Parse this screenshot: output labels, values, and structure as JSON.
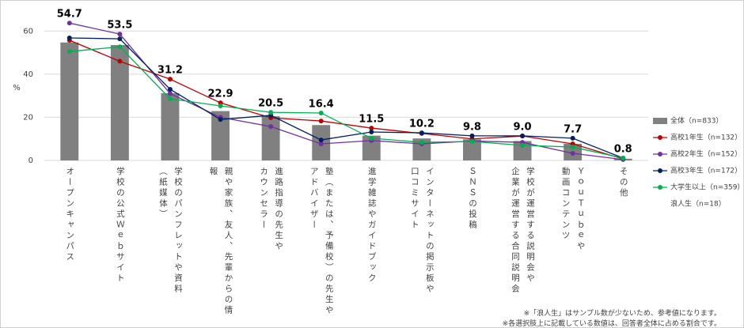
{
  "chart_data": {
    "type": "bar-line",
    "y_label": "%",
    "categories": [
      "オープンキャンパス",
      "学校の公式Ｗｅｂサイト",
      "学校のパンフレットや資料\n（紙媒体）",
      "親や家族、友人、先輩からの情\n報",
      "進路指導の先生や\nカウンセラー",
      "塾（または、予備校）の先生や\nアドバイザー",
      "進学雑誌やガイドブック",
      "インターネットの掲示板や\n口コミサイト",
      "ＳＮＳの投稿",
      "学校が運営する説明会や\n企業が運営する合同説明会",
      "ＹｏｕＴｕｂｅや\n動画コンテンツ",
      "その他"
    ],
    "ylim": [
      0,
      70
    ],
    "yticks": [
      0,
      20,
      40,
      60
    ],
    "grid": true,
    "series": [
      {
        "name": "全体（n=833）",
        "kind": "bar",
        "color": "#808080",
        "values": [
          54.7,
          53.5,
          31.2,
          22.9,
          20.5,
          16.4,
          11.5,
          10.2,
          9.8,
          9.0,
          7.7,
          0.8
        ],
        "value_labels": [
          "54.7",
          "53.5",
          "31.2",
          "22.9",
          "20.5",
          "16.4",
          "11.5",
          "10.2",
          "9.8",
          "9.0",
          "7.7",
          "0.8"
        ]
      },
      {
        "name": "高校1年生（n=132）",
        "kind": "line",
        "color": "#c00000",
        "values": [
          55.7,
          46,
          37.7,
          26.7,
          19.8,
          18.3,
          15,
          12.5,
          10,
          11.3,
          7.7,
          0.7
        ]
      },
      {
        "name": "高校2年生（n=152）",
        "kind": "line",
        "color": "#7030a0",
        "values": [
          63.7,
          58.6,
          31,
          20,
          15.7,
          7.7,
          9.2,
          7.7,
          9,
          8.4,
          3.3,
          0.4
        ]
      },
      {
        "name": "高校3年生（n=172）",
        "kind": "line",
        "color": "#002060",
        "values": [
          56.8,
          56.4,
          33,
          19,
          20.9,
          9.5,
          13.2,
          12.8,
          11.4,
          11.4,
          10.3,
          1.1
        ]
      },
      {
        "name": "大学生以上（n=359）",
        "kind": "line",
        "color": "#00b050",
        "values": [
          50.5,
          52.7,
          28.6,
          25.3,
          22.3,
          22,
          10.3,
          8.4,
          8.8,
          7,
          6.2,
          1.1
        ]
      },
      {
        "name": "浪人生（n=18）",
        "kind": "line",
        "values": [
          null,
          null,
          null,
          null,
          null,
          null,
          null,
          null,
          null,
          null,
          null,
          null
        ]
      }
    ],
    "notes": [
      "※「浪人生」はサンプル数が少ないため、参考値になります。",
      "※各選択肢上に記載している数値は、回答者全体に占める割合です。"
    ]
  }
}
